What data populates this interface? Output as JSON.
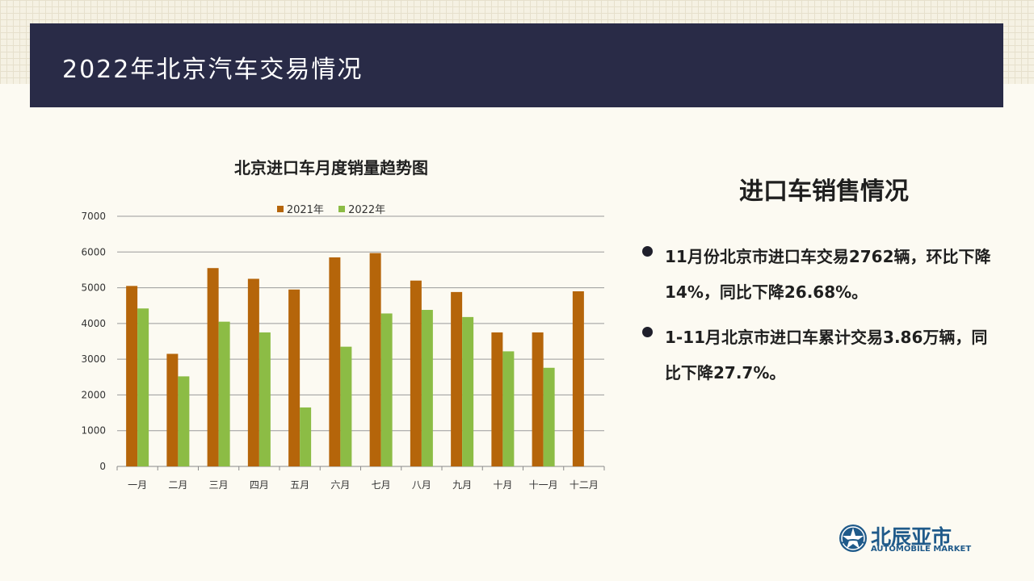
{
  "header": {
    "title": "2022年北京汽车交易情况"
  },
  "colors": {
    "series2021": "#b5650a",
    "series2022": "#8cbc45",
    "header_bg": "#292b47",
    "logo": "#1f5a8a"
  },
  "chart_data": {
    "type": "bar",
    "title": "北京进口车月度销量趋势图",
    "categories": [
      "一月",
      "二月",
      "三月",
      "四月",
      "五月",
      "六月",
      "七月",
      "八月",
      "九月",
      "十月",
      "十一月",
      "十二月"
    ],
    "series": [
      {
        "name": "2021年",
        "values": [
          5050,
          3150,
          5550,
          5250,
          4950,
          5850,
          5970,
          5200,
          4880,
          3750,
          3750,
          4900
        ]
      },
      {
        "name": "2022年",
        "values": [
          4420,
          2520,
          4050,
          3750,
          1650,
          3350,
          4280,
          4380,
          4180,
          3220,
          2760,
          null
        ]
      }
    ],
    "ylim": [
      0,
      7000
    ],
    "yticks": [
      0,
      1000,
      2000,
      3000,
      4000,
      5000,
      6000,
      7000
    ],
    "grid": true,
    "legend_position": "top"
  },
  "panel": {
    "title": "进口车销售情况",
    "bullets": [
      "11月份北京市进口车交易2762辆，环比下降14%，同比下降26.68%。",
      "1-11月北京市进口车累计交易3.86万辆，同比下降27.7%。"
    ]
  },
  "logo": {
    "name_cn": "北辰亚市",
    "name_en": "AUTOMOBILE MARKET",
    "icon": "star-globe-icon"
  }
}
